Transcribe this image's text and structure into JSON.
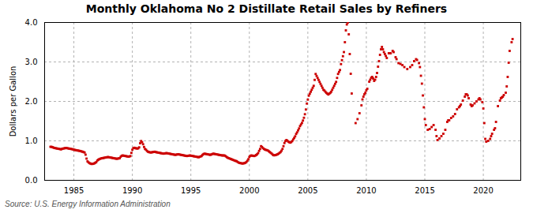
{
  "chart_data": {
    "type": "scatter",
    "title": "Monthly Oklahoma No 2 Distillate Retail Sales by Refiners",
    "ylabel": "Dollars per Gallon",
    "caption": "Source: U.S. Energy Information Administration",
    "xlim": [
      1982.5,
      2023.2
    ],
    "ylim": [
      0.0,
      4.0
    ],
    "xticks": [
      1985,
      1990,
      1995,
      2000,
      2005,
      2010,
      2015,
      2020
    ],
    "yticks": [
      {
        "value": 0.0,
        "label": "0.0"
      },
      {
        "value": 1.0,
        "label": "1.0"
      },
      {
        "value": 2.0,
        "label": "2.0"
      },
      {
        "value": 3.0,
        "label": "3.0"
      },
      {
        "value": 4.0,
        "label": "4.0"
      }
    ],
    "grid": true,
    "color": "#cc0000",
    "marker": "square",
    "x": [
      1983.0,
      1983.083,
      1983.167,
      1983.25,
      1983.333,
      1983.417,
      1983.5,
      1983.583,
      1983.667,
      1983.75,
      1983.833,
      1983.917,
      1984.0,
      1984.083,
      1984.167,
      1984.25,
      1984.333,
      1984.417,
      1984.5,
      1984.583,
      1984.667,
      1984.75,
      1984.833,
      1984.917,
      1985.0,
      1985.083,
      1985.167,
      1985.25,
      1985.333,
      1985.417,
      1985.5,
      1985.583,
      1985.667,
      1985.75,
      1985.833,
      1985.917,
      1986.0,
      1986.083,
      1986.167,
      1986.25,
      1986.333,
      1986.417,
      1986.5,
      1986.583,
      1986.667,
      1986.75,
      1986.833,
      1986.917,
      1987.0,
      1987.083,
      1987.167,
      1987.25,
      1987.333,
      1987.417,
      1987.5,
      1987.583,
      1987.667,
      1987.75,
      1987.833,
      1987.917,
      1988.0,
      1988.083,
      1988.167,
      1988.25,
      1988.333,
      1988.417,
      1988.5,
      1988.583,
      1988.667,
      1988.75,
      1988.833,
      1988.917,
      1989.0,
      1989.083,
      1989.167,
      1989.25,
      1989.333,
      1989.417,
      1989.5,
      1989.583,
      1989.667,
      1989.75,
      1989.833,
      1989.917,
      1990.0,
      1990.083,
      1990.167,
      1990.25,
      1990.333,
      1990.417,
      1990.5,
      1990.583,
      1990.667,
      1990.75,
      1990.833,
      1990.917,
      1991.0,
      1991.083,
      1991.167,
      1991.25,
      1991.333,
      1991.417,
      1991.5,
      1991.583,
      1991.667,
      1991.75,
      1991.833,
      1991.917,
      1992.0,
      1992.083,
      1992.167,
      1992.25,
      1992.333,
      1992.417,
      1992.5,
      1992.583,
      1992.667,
      1992.75,
      1992.833,
      1992.917,
      1993.0,
      1993.083,
      1993.167,
      1993.25,
      1993.333,
      1993.417,
      1993.5,
      1993.583,
      1993.667,
      1993.75,
      1993.833,
      1993.917,
      1994.0,
      1994.083,
      1994.167,
      1994.25,
      1994.333,
      1994.417,
      1994.5,
      1994.583,
      1994.667,
      1994.75,
      1994.833,
      1994.917,
      1995.0,
      1995.083,
      1995.167,
      1995.25,
      1995.333,
      1995.417,
      1995.5,
      1995.583,
      1995.667,
      1995.75,
      1995.833,
      1995.917,
      1996.0,
      1996.083,
      1996.167,
      1996.25,
      1996.333,
      1996.417,
      1996.5,
      1996.583,
      1996.667,
      1996.75,
      1996.833,
      1996.917,
      1997.0,
      1997.083,
      1997.167,
      1997.25,
      1997.333,
      1997.417,
      1997.5,
      1997.583,
      1997.667,
      1997.75,
      1997.833,
      1997.917,
      1998.0,
      1998.083,
      1998.167,
      1998.25,
      1998.333,
      1998.417,
      1998.5,
      1998.583,
      1998.667,
      1998.75,
      1998.833,
      1998.917,
      1999.0,
      1999.083,
      1999.167,
      1999.25,
      1999.333,
      1999.417,
      1999.5,
      1999.583,
      1999.667,
      1999.75,
      1999.833,
      1999.917,
      2000.0,
      2000.083,
      2000.167,
      2000.25,
      2000.333,
      2000.417,
      2000.5,
      2000.583,
      2000.667,
      2000.75,
      2000.833,
      2000.917,
      2001.0,
      2001.083,
      2001.167,
      2001.25,
      2001.333,
      2001.417,
      2001.5,
      2001.583,
      2001.667,
      2001.75,
      2001.833,
      2001.917,
      2002.0,
      2002.083,
      2002.167,
      2002.25,
      2002.333,
      2002.417,
      2002.5,
      2002.583,
      2002.667,
      2002.75,
      2002.833,
      2002.917,
      2003.0,
      2003.083,
      2003.167,
      2003.25,
      2003.333,
      2003.417,
      2003.5,
      2003.583,
      2003.667,
      2003.75,
      2003.833,
      2003.917,
      2004.0,
      2004.083,
      2004.167,
      2004.25,
      2004.333,
      2004.417,
      2004.5,
      2004.583,
      2004.667,
      2004.75,
      2004.833,
      2004.917,
      2005.0,
      2005.083,
      2005.167,
      2005.25,
      2005.333,
      2005.417,
      2005.5,
      2005.583,
      2005.667,
      2005.75,
      2005.833,
      2005.917,
      2006.0,
      2006.083,
      2006.167,
      2006.25,
      2006.333,
      2006.417,
      2006.5,
      2006.583,
      2006.667,
      2006.75,
      2006.833,
      2006.917,
      2007.0,
      2007.083,
      2007.167,
      2007.25,
      2007.333,
      2007.417,
      2007.5,
      2007.583,
      2007.667,
      2007.75,
      2007.833,
      2007.917,
      2008.0,
      2008.083,
      2008.167,
      2008.25,
      2008.333,
      2008.417,
      2008.5,
      2008.583,
      2008.667,
      2008.75,
      2009.083,
      2009.25,
      2009.417,
      2009.583,
      2009.667,
      2009.75,
      2009.833,
      2009.917,
      2010.0,
      2010.083,
      2010.25,
      2010.333,
      2010.417,
      2010.5,
      2010.583,
      2010.667,
      2010.75,
      2010.833,
      2010.917,
      2011.0,
      2011.083,
      2011.167,
      2011.25,
      2011.333,
      2011.417,
      2011.5,
      2011.583,
      2011.667,
      2011.75,
      2011.917,
      2012.0,
      2012.083,
      2012.25,
      2012.333,
      2012.5,
      2012.583,
      2012.75,
      2012.917,
      2013.083,
      2013.25,
      2013.5,
      2013.75,
      2013.917,
      2014.083,
      2014.25,
      2014.333,
      2014.5,
      2014.583,
      2014.667,
      2014.75,
      2014.833,
      2014.917,
      2015.0,
      2015.083,
      2015.25,
      2015.417,
      2015.583,
      2015.75,
      2015.917,
      2016.0,
      2016.083,
      2016.25,
      2016.417,
      2016.583,
      2016.75,
      2016.917,
      2017.0,
      2017.083,
      2017.25,
      2017.417,
      2017.583,
      2017.75,
      2017.917,
      2018.0,
      2018.083,
      2018.25,
      2018.417,
      2018.5,
      2018.583,
      2018.667,
      2018.75,
      2018.917,
      2019.0,
      2019.083,
      2019.25,
      2019.417,
      2019.583,
      2019.667,
      2019.75,
      2019.917,
      2020.0,
      2020.083,
      2020.167,
      2020.25,
      2020.417,
      2020.583,
      2020.667,
      2020.75,
      2020.917,
      2021.0,
      2021.083,
      2021.25,
      2021.417,
      2021.5,
      2021.583,
      2021.667,
      2021.75,
      2021.917,
      2022.0,
      2022.083,
      2022.167,
      2022.25,
      2022.417,
      2022.5
    ],
    "values": [
      0.849,
      0.849,
      0.84,
      0.83,
      0.82,
      0.815,
      0.81,
      0.805,
      0.8,
      0.795,
      0.79,
      0.785,
      0.8,
      0.805,
      0.81,
      0.815,
      0.82,
      0.815,
      0.81,
      0.805,
      0.8,
      0.795,
      0.79,
      0.785,
      0.775,
      0.77,
      0.765,
      0.76,
      0.755,
      0.75,
      0.745,
      0.74,
      0.73,
      0.725,
      0.715,
      0.705,
      0.65,
      0.55,
      0.48,
      0.455,
      0.435,
      0.425,
      0.415,
      0.415,
      0.42,
      0.43,
      0.445,
      0.46,
      0.5,
      0.52,
      0.535,
      0.545,
      0.555,
      0.56,
      0.565,
      0.57,
      0.575,
      0.58,
      0.585,
      0.59,
      0.585,
      0.58,
      0.575,
      0.57,
      0.565,
      0.56,
      0.555,
      0.55,
      0.545,
      0.55,
      0.555,
      0.56,
      0.595,
      0.62,
      0.63,
      0.625,
      0.62,
      0.615,
      0.61,
      0.605,
      0.6,
      0.605,
      0.615,
      0.695,
      0.775,
      0.815,
      0.825,
      0.815,
      0.81,
      0.805,
      0.81,
      0.835,
      0.94,
      0.995,
      0.965,
      0.915,
      0.845,
      0.795,
      0.775,
      0.745,
      0.725,
      0.715,
      0.71,
      0.705,
      0.71,
      0.715,
      0.72,
      0.725,
      0.715,
      0.71,
      0.705,
      0.7,
      0.695,
      0.69,
      0.685,
      0.68,
      0.675,
      0.68,
      0.685,
      0.69,
      0.685,
      0.68,
      0.675,
      0.67,
      0.665,
      0.66,
      0.655,
      0.65,
      0.645,
      0.65,
      0.655,
      0.66,
      0.655,
      0.65,
      0.645,
      0.64,
      0.635,
      0.63,
      0.625,
      0.62,
      0.615,
      0.62,
      0.625,
      0.63,
      0.625,
      0.62,
      0.615,
      0.61,
      0.605,
      0.6,
      0.595,
      0.59,
      0.585,
      0.595,
      0.605,
      0.615,
      0.645,
      0.665,
      0.675,
      0.67,
      0.665,
      0.66,
      0.655,
      0.65,
      0.645,
      0.655,
      0.665,
      0.675,
      0.67,
      0.665,
      0.66,
      0.655,
      0.65,
      0.645,
      0.64,
      0.635,
      0.63,
      0.63,
      0.63,
      0.625,
      0.605,
      0.585,
      0.57,
      0.56,
      0.55,
      0.54,
      0.53,
      0.52,
      0.51,
      0.5,
      0.49,
      0.485,
      0.465,
      0.45,
      0.44,
      0.435,
      0.43,
      0.425,
      0.43,
      0.435,
      0.445,
      0.465,
      0.495,
      0.535,
      0.59,
      0.62,
      0.63,
      0.625,
      0.62,
      0.615,
      0.625,
      0.64,
      0.66,
      0.69,
      0.745,
      0.795,
      0.865,
      0.845,
      0.815,
      0.795,
      0.78,
      0.77,
      0.765,
      0.755,
      0.735,
      0.715,
      0.695,
      0.675,
      0.65,
      0.635,
      0.635,
      0.64,
      0.65,
      0.66,
      0.675,
      0.695,
      0.715,
      0.75,
      0.795,
      0.865,
      0.945,
      0.995,
      1.02,
      1.005,
      0.98,
      0.965,
      0.955,
      0.97,
      0.995,
      1.035,
      1.075,
      1.115,
      1.175,
      1.215,
      1.265,
      1.315,
      1.375,
      1.415,
      1.455,
      1.515,
      1.585,
      1.675,
      1.795,
      1.945,
      2.045,
      2.145,
      2.195,
      2.245,
      2.295,
      2.345,
      2.395,
      2.545,
      2.695,
      2.645,
      2.595,
      2.545,
      2.495,
      2.445,
      2.395,
      2.345,
      2.295,
      2.275,
      2.245,
      2.215,
      2.195,
      2.175,
      2.195,
      2.215,
      2.245,
      2.295,
      2.345,
      2.395,
      2.445,
      2.495,
      2.595,
      2.695,
      2.745,
      2.795,
      2.945,
      3.045,
      3.145,
      3.25,
      3.5,
      3.8,
      3.95,
      4.0,
      3.7,
      3.2,
      2.7,
      2.2,
      1.45,
      1.55,
      1.7,
      1.9,
      2.05,
      2.12,
      2.18,
      2.22,
      2.28,
      2.32,
      2.5,
      2.55,
      2.6,
      2.62,
      2.58,
      2.52,
      2.55,
      2.62,
      2.72,
      2.88,
      3.02,
      3.18,
      3.32,
      3.38,
      3.32,
      3.25,
      3.2,
      3.15,
      3.1,
      3.22,
      3.22,
      3.22,
      3.28,
      3.25,
      3.12,
      3.07,
      2.97,
      2.95,
      2.92,
      2.87,
      2.82,
      2.87,
      2.92,
      3.02,
      3.07,
      3.05,
      2.97,
      2.87,
      2.65,
      2.45,
      2.15,
      1.85,
      1.55,
      1.4,
      1.28,
      1.3,
      1.35,
      1.4,
      1.28,
      1.12,
      1.02,
      1.06,
      1.12,
      1.18,
      1.28,
      1.48,
      1.52,
      1.52,
      1.58,
      1.62,
      1.68,
      1.8,
      1.85,
      1.88,
      1.92,
      2.02,
      2.12,
      2.18,
      2.18,
      2.15,
      2.08,
      1.92,
      1.88,
      1.9,
      1.95,
      2.0,
      2.05,
      2.08,
      2.05,
      1.98,
      1.82,
      1.45,
      1.05,
      0.98,
      1.0,
      1.05,
      1.12,
      1.18,
      1.28,
      1.32,
      1.48,
      1.88,
      2.02,
      2.08,
      2.1,
      2.12,
      2.16,
      2.22,
      2.38,
      2.62,
      2.98,
      3.28,
      3.5,
      3.58
    ]
  }
}
